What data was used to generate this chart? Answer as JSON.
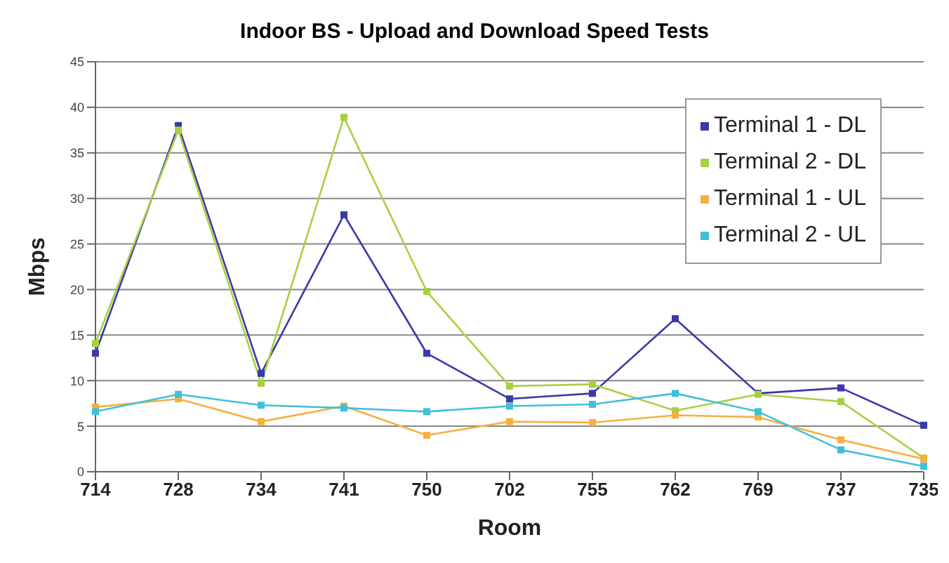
{
  "chart_data": {
    "type": "line",
    "title": "Indoor BS - Upload and Download Speed Tests",
    "xlabel": "Room",
    "ylabel": "Mbps",
    "categories": [
      "714",
      "728",
      "734",
      "741",
      "750",
      "702",
      "755",
      "762",
      "769",
      "737",
      "735"
    ],
    "series": [
      {
        "name": "Terminal 1 - DL",
        "color": "#3a3aa8",
        "values": [
          13,
          38,
          10.8,
          28.2,
          13,
          8,
          8.6,
          16.8,
          8.6,
          9.2,
          5.1
        ]
      },
      {
        "name": "Terminal 2 - DL",
        "color": "#a8d040",
        "values": [
          14.1,
          37.5,
          9.7,
          38.9,
          19.8,
          9.4,
          9.6,
          6.7,
          8.5,
          7.7,
          1.5
        ]
      },
      {
        "name": "Terminal 1 - UL",
        "color": "#f5b040",
        "values": [
          7.1,
          8,
          5.5,
          7.2,
          4,
          5.5,
          5.4,
          6.2,
          6,
          3.5,
          1.4
        ]
      },
      {
        "name": "Terminal 2 - UL",
        "color": "#40c0d8",
        "values": [
          6.6,
          8.5,
          7.3,
          7,
          6.6,
          7.2,
          7.4,
          8.6,
          6.6,
          2.4,
          0.6
        ]
      }
    ],
    "ylim": [
      0,
      45
    ],
    "yticks": [
      0,
      5,
      10,
      15,
      20,
      25,
      30,
      35,
      40,
      45
    ],
    "grid": "y",
    "legend": "top right",
    "marker": "square",
    "line_style": "solid"
  }
}
